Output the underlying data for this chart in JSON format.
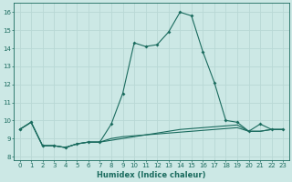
{
  "xlabel": "Humidex (Indice chaleur)",
  "xlim": [
    -0.5,
    23.5
  ],
  "ylim": [
    7.8,
    16.5
  ],
  "yticks": [
    8,
    9,
    10,
    11,
    12,
    13,
    14,
    15,
    16
  ],
  "xticks": [
    0,
    1,
    2,
    3,
    4,
    5,
    6,
    7,
    8,
    9,
    10,
    11,
    12,
    13,
    14,
    15,
    16,
    17,
    18,
    19,
    20,
    21,
    22,
    23
  ],
  "bg_color": "#cce8e5",
  "line_color": "#1a6b5e",
  "grid_color": "#b8d8d5",
  "series_peak_x": [
    0,
    1,
    2,
    3,
    4,
    5,
    6,
    7,
    8,
    9,
    10,
    11,
    12,
    13,
    14,
    15,
    16,
    17,
    18,
    19,
    20,
    21,
    22,
    23
  ],
  "series_peak_y": [
    9.5,
    9.9,
    8.6,
    8.6,
    8.5,
    8.7,
    8.8,
    8.8,
    9.8,
    11.5,
    14.3,
    14.1,
    14.2,
    14.9,
    16.0,
    15.8,
    13.8,
    12.1,
    10.0,
    9.9,
    9.4,
    9.8,
    9.5,
    9.5
  ],
  "series_low_x": [
    0,
    1,
    2,
    3,
    4,
    5,
    6,
    7,
    8,
    9,
    10,
    11,
    12,
    13,
    14,
    15,
    16,
    17,
    18,
    19,
    20,
    21,
    22,
    23
  ],
  "series_low_y": [
    9.5,
    9.9,
    8.6,
    8.6,
    8.5,
    8.7,
    8.8,
    8.8,
    8.9,
    9.0,
    9.1,
    9.2,
    9.3,
    9.4,
    9.5,
    9.55,
    9.6,
    9.65,
    9.7,
    9.75,
    9.4,
    9.4,
    9.5,
    9.5
  ],
  "series_mid_x": [
    0,
    1,
    2,
    3,
    4,
    5,
    6,
    7,
    8,
    9,
    10,
    11,
    12,
    13,
    14,
    15,
    16,
    17,
    18,
    19,
    20,
    21,
    22,
    23
  ],
  "series_mid_y": [
    9.5,
    9.9,
    8.6,
    8.6,
    8.5,
    8.7,
    8.8,
    8.8,
    9.0,
    9.1,
    9.15,
    9.2,
    9.25,
    9.3,
    9.35,
    9.4,
    9.45,
    9.5,
    9.55,
    9.6,
    9.4,
    9.4,
    9.5,
    9.5
  ],
  "marker_indices_peak": [
    0,
    1,
    2,
    3,
    4,
    5,
    6,
    7,
    8,
    9,
    10,
    11,
    12,
    13,
    14,
    15,
    16,
    17,
    18,
    19,
    20,
    21,
    22,
    23
  ],
  "marker_indices_low": [
    0,
    1,
    2,
    3,
    4
  ]
}
